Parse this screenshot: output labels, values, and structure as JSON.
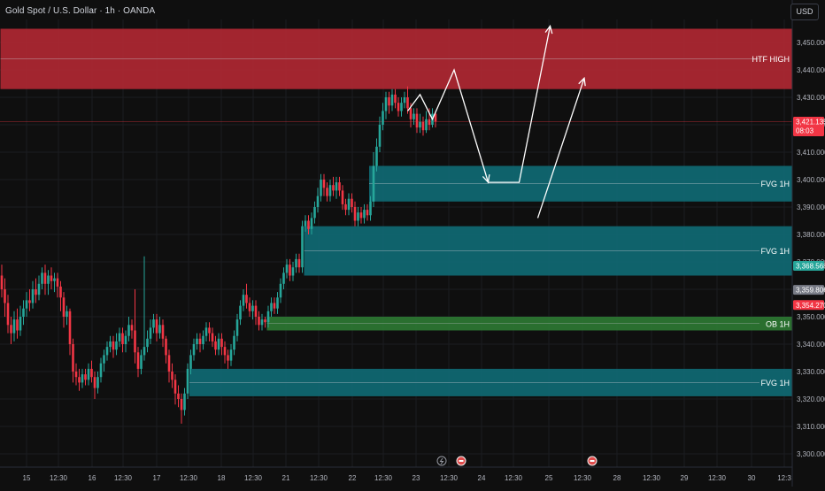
{
  "header": {
    "title": "Gold Spot / U.S. Dollar · 1h · OANDA",
    "currency_button": "USD"
  },
  "chart_data": {
    "type": "candlestick",
    "timeframe": "1h",
    "price_axis": {
      "ylim": [
        3300,
        3460
      ],
      "ticks": [
        3300,
        3310,
        3320,
        3330,
        3340,
        3350,
        3360,
        3370,
        3380,
        3390,
        3400,
        3410,
        3420,
        3430,
        3440,
        3450
      ],
      "tick_labels": [
        "3,300.000",
        "3,310.000",
        "3,320.000",
        "3,330.000",
        "3,340.000",
        "3,350.000",
        "3,360.000",
        "3,370.000",
        "3,380.000",
        "3,390.000",
        "3,400.000",
        "3,410.000",
        "3,420.000",
        "3,430.000",
        "3,440.000",
        "3,450.000"
      ]
    },
    "time_axis": {
      "labels": [
        "15",
        "12:30",
        "16",
        "12:30",
        "17",
        "12:30",
        "18",
        "12:30",
        "21",
        "12:30",
        "22",
        "12:30",
        "23",
        "12:30",
        "24",
        "12:30",
        "25",
        "12:30",
        "28",
        "12:30",
        "29",
        "12:30",
        "30",
        "12:3"
      ]
    },
    "last_price": {
      "value": "3,421.135",
      "countdown": "08:03",
      "numeric": 3421.135
    },
    "price_badges": [
      {
        "value": "3,368.568",
        "numeric": 3368.568,
        "color": "#26a69a"
      },
      {
        "value": "3,359.806",
        "numeric": 3359.806,
        "color": "#787b86"
      },
      {
        "value": "3,354.270",
        "numeric": 3354.27,
        "color": "#f23645"
      }
    ],
    "zones": [
      {
        "label": "HTF HIGH",
        "top": 3455,
        "bottom": 3433,
        "color": "#b22833",
        "start_index": 0
      },
      {
        "label": "FVG 1H",
        "top": 3405,
        "bottom": 3392,
        "color": "#0f6b75",
        "start_index": 119
      },
      {
        "label": "FVG 1H",
        "top": 3383,
        "bottom": 3365,
        "color": "#0f6b75",
        "start_index": 98
      },
      {
        "label": "OB 1H",
        "top": 3350,
        "bottom": 3345,
        "color": "#2e7a33",
        "start_index": 86
      },
      {
        "label": "FVG 1H",
        "top": 3331,
        "bottom": 3321,
        "color": "#0f6b75",
        "start_index": 61
      }
    ],
    "candles": [
      [
        3365,
        3360,
        3369,
        3357
      ],
      [
        3360,
        3355,
        3364,
        3350
      ],
      [
        3355,
        3347,
        3358,
        3344
      ],
      [
        3347,
        3344,
        3350,
        3340
      ],
      [
        3344,
        3349,
        3352,
        3341
      ],
      [
        3349,
        3345,
        3353,
        3342
      ],
      [
        3345,
        3350,
        3354,
        3343
      ],
      [
        3350,
        3353,
        3356,
        3347
      ],
      [
        3353,
        3356,
        3359,
        3350
      ],
      [
        3356,
        3355,
        3360,
        3352
      ],
      [
        3355,
        3360,
        3363,
        3353
      ],
      [
        3360,
        3358,
        3364,
        3355
      ],
      [
        3358,
        3362,
        3365,
        3356
      ],
      [
        3362,
        3366,
        3368,
        3360
      ],
      [
        3366,
        3362,
        3369,
        3358
      ],
      [
        3362,
        3365,
        3367,
        3358
      ],
      [
        3365,
        3363,
        3368,
        3360
      ],
      [
        3363,
        3364,
        3366,
        3359
      ],
      [
        3364,
        3361,
        3366,
        3357
      ],
      [
        3361,
        3357,
        3363,
        3352
      ],
      [
        3357,
        3350,
        3359,
        3346
      ],
      [
        3350,
        3352,
        3354,
        3347
      ],
      [
        3352,
        3340,
        3353,
        3336
      ],
      [
        3340,
        3330,
        3342,
        3326
      ],
      [
        3330,
        3328,
        3333,
        3325
      ],
      [
        3328,
        3326,
        3331,
        3323
      ],
      [
        3326,
        3329,
        3331,
        3324
      ],
      [
        3329,
        3327,
        3331,
        3325
      ],
      [
        3327,
        3331,
        3333,
        3325
      ],
      [
        3331,
        3328,
        3334,
        3326
      ],
      [
        3328,
        3324,
        3330,
        3320
      ],
      [
        3324,
        3328,
        3330,
        3322
      ],
      [
        3328,
        3333,
        3335,
        3326
      ],
      [
        3333,
        3336,
        3338,
        3330
      ],
      [
        3336,
        3339,
        3341,
        3334
      ],
      [
        3339,
        3341,
        3343,
        3337
      ],
      [
        3341,
        3338,
        3343,
        3335
      ],
      [
        3338,
        3341,
        3344,
        3336
      ],
      [
        3341,
        3344,
        3346,
        3339
      ],
      [
        3344,
        3340,
        3346,
        3337
      ],
      [
        3340,
        3343,
        3345,
        3337
      ],
      [
        3343,
        3347,
        3350,
        3341
      ],
      [
        3347,
        3345,
        3349,
        3342
      ],
      [
        3345,
        3337,
        3360,
        3333
      ],
      [
        3337,
        3331,
        3339,
        3328
      ],
      [
        3331,
        3336,
        3338,
        3329
      ],
      [
        3336,
        3339,
        3372,
        3334
      ],
      [
        3339,
        3342,
        3345,
        3337
      ],
      [
        3342,
        3346,
        3349,
        3340
      ],
      [
        3346,
        3349,
        3351,
        3344
      ],
      [
        3349,
        3344,
        3351,
        3341
      ],
      [
        3344,
        3347,
        3350,
        3342
      ],
      [
        3347,
        3342,
        3349,
        3339
      ],
      [
        3342,
        3336,
        3343,
        3333
      ],
      [
        3336,
        3330,
        3338,
        3326
      ],
      [
        3330,
        3327,
        3333,
        3324
      ],
      [
        3327,
        3322,
        3329,
        3318
      ],
      [
        3322,
        3320,
        3325,
        3317
      ],
      [
        3320,
        3316,
        3322,
        3311
      ],
      [
        3316,
        3322,
        3324,
        3314
      ],
      [
        3322,
        3331,
        3333,
        3320
      ],
      [
        3331,
        3336,
        3338,
        3329
      ],
      [
        3336,
        3340,
        3342,
        3334
      ],
      [
        3340,
        3342,
        3344,
        3338
      ],
      [
        3342,
        3340,
        3344,
        3337
      ],
      [
        3340,
        3343,
        3345,
        3338
      ],
      [
        3343,
        3346,
        3348,
        3341
      ],
      [
        3346,
        3344,
        3348,
        3341
      ],
      [
        3344,
        3341,
        3346,
        3339
      ],
      [
        3341,
        3338,
        3343,
        3336
      ],
      [
        3338,
        3342,
        3344,
        3336
      ],
      [
        3342,
        3339,
        3344,
        3336
      ],
      [
        3339,
        3336,
        3341,
        3333
      ],
      [
        3336,
        3334,
        3338,
        3331
      ],
      [
        3334,
        3338,
        3340,
        3332
      ],
      [
        3338,
        3343,
        3345,
        3336
      ],
      [
        3343,
        3349,
        3351,
        3341
      ],
      [
        3349,
        3354,
        3356,
        3347
      ],
      [
        3354,
        3358,
        3360,
        3352
      ],
      [
        3358,
        3355,
        3362,
        3353
      ],
      [
        3355,
        3352,
        3357,
        3350
      ],
      [
        3352,
        3354,
        3356,
        3349
      ],
      [
        3354,
        3350,
        3356,
        3347
      ],
      [
        3350,
        3347,
        3352,
        3345
      ],
      [
        3347,
        3349,
        3351,
        3345
      ],
      [
        3349,
        3348,
        3350,
        3346
      ],
      [
        3348,
        3352,
        3354,
        3346
      ],
      [
        3352,
        3355,
        3357,
        3350
      ],
      [
        3355,
        3353,
        3357,
        3351
      ],
      [
        3353,
        3357,
        3359,
        3351
      ],
      [
        3357,
        3362,
        3364,
        3355
      ],
      [
        3362,
        3366,
        3368,
        3360
      ],
      [
        3366,
        3369,
        3371,
        3364
      ],
      [
        3369,
        3365,
        3371,
        3363
      ],
      [
        3365,
        3368,
        3370,
        3363
      ],
      [
        3368,
        3371,
        3373,
        3366
      ],
      [
        3371,
        3368,
        3373,
        3366
      ],
      [
        3368,
        3383,
        3385,
        3366
      ],
      [
        3383,
        3385,
        3387,
        3381
      ],
      [
        3385,
        3382,
        3387,
        3380
      ],
      [
        3382,
        3386,
        3388,
        3380
      ],
      [
        3386,
        3390,
        3392,
        3384
      ],
      [
        3390,
        3394,
        3397,
        3388
      ],
      [
        3394,
        3400,
        3402,
        3392
      ],
      [
        3400,
        3397,
        3402,
        3394
      ],
      [
        3397,
        3394,
        3399,
        3392
      ],
      [
        3394,
        3398,
        3400,
        3392
      ],
      [
        3398,
        3396,
        3401,
        3394
      ],
      [
        3396,
        3399,
        3401,
        3393
      ],
      [
        3399,
        3396,
        3401,
        3394
      ],
      [
        3396,
        3391,
        3398,
        3389
      ],
      [
        3391,
        3389,
        3393,
        3387
      ],
      [
        3389,
        3393,
        3395,
        3387
      ],
      [
        3393,
        3390,
        3395,
        3388
      ],
      [
        3390,
        3385,
        3392,
        3383
      ],
      [
        3385,
        3388,
        3390,
        3383
      ],
      [
        3388,
        3386,
        3390,
        3384
      ],
      [
        3386,
        3389,
        3391,
        3384
      ],
      [
        3389,
        3387,
        3391,
        3385
      ],
      [
        3387,
        3392,
        3394,
        3385
      ],
      [
        3392,
        3405,
        3410,
        3390
      ],
      [
        3405,
        3412,
        3415,
        3403
      ],
      [
        3412,
        3420,
        3423,
        3410
      ],
      [
        3420,
        3425,
        3428,
        3418
      ],
      [
        3425,
        3430,
        3432,
        3422
      ],
      [
        3430,
        3427,
        3432,
        3424
      ],
      [
        3427,
        3431,
        3433,
        3425
      ],
      [
        3431,
        3428,
        3433,
        3426
      ],
      [
        3428,
        3425,
        3430,
        3423
      ],
      [
        3425,
        3428,
        3430,
        3423
      ],
      [
        3428,
        3430,
        3432,
        3426
      ],
      [
        3430,
        3426,
        3434,
        3424
      ],
      [
        3426,
        3422,
        3428,
        3419
      ],
      [
        3422,
        3424,
        3426,
        3420
      ],
      [
        3424,
        3419,
        3426,
        3417
      ],
      [
        3419,
        3421,
        3424,
        3417
      ],
      [
        3421,
        3418,
        3423,
        3416
      ],
      [
        3418,
        3422,
        3425,
        3417
      ],
      [
        3422,
        3420,
        3426,
        3418
      ],
      [
        3420,
        3424,
        3426,
        3419
      ],
      [
        3424,
        3421.135,
        3425,
        3419
      ]
    ],
    "projection_paths": [
      [
        [
          131,
          3425
        ],
        [
          135,
          3431
        ],
        [
          139,
          3422
        ],
        [
          146,
          3440
        ],
        [
          157,
          3399
        ],
        [
          167,
          3399
        ],
        [
          177,
          3456
        ]
      ],
      [
        [
          173,
          3386
        ],
        [
          188,
          3437
        ]
      ]
    ],
    "event_markers": [
      {
        "kind": "lightning",
        "time_position": 22.85
      },
      {
        "kind": "flag",
        "time_position": 23.1
      },
      {
        "kind": "flag",
        "time_position": 25.2
      }
    ]
  }
}
